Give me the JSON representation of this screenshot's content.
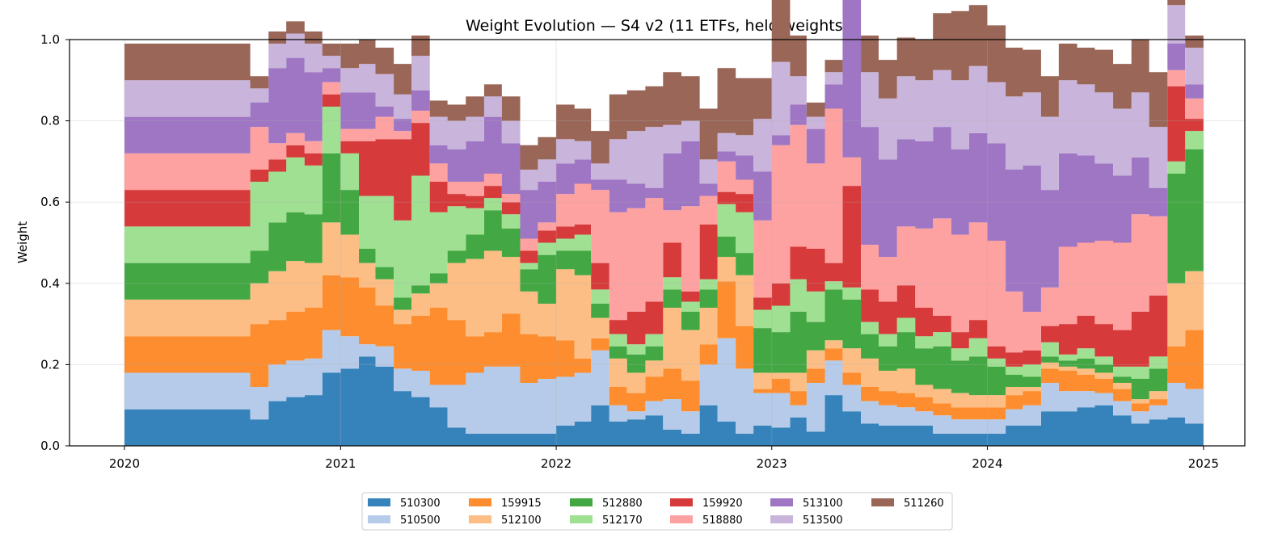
{
  "chart_data": {
    "type": "area",
    "subtype": "stacked-step",
    "title": "Weight Evolution — S4 v2 (11 ETFs, held weights)",
    "xlabel": "",
    "ylabel": "Weight",
    "ylim": [
      0,
      1
    ],
    "xlim": [
      "2019-09-30",
      "2025-03-12"
    ],
    "yticks": [
      "0.0",
      "0.2",
      "0.4",
      "0.6",
      "0.8",
      "1.0"
    ],
    "xticks": [
      "2020",
      "2021",
      "2022",
      "2023",
      "2024",
      "2025"
    ],
    "grid": true,
    "legend_position": "bottom-center",
    "x": [
      "2020-01-01",
      "2020-08-01",
      "2020-09-01",
      "2020-10-01",
      "2020-11-01",
      "2020-12-01",
      "2021-01-01",
      "2021-02-01",
      "2021-03-01",
      "2021-04-01",
      "2021-05-01",
      "2021-06-01",
      "2021-07-01",
      "2021-08-01",
      "2021-09-01",
      "2021-10-01",
      "2021-11-01",
      "2021-12-01",
      "2022-01-01",
      "2022-02-01",
      "2022-03-01",
      "2022-04-01",
      "2022-05-01",
      "2022-06-01",
      "2022-07-01",
      "2022-08-01",
      "2022-09-01",
      "2022-10-01",
      "2022-11-01",
      "2022-12-01",
      "2023-01-01",
      "2023-02-01",
      "2023-03-01",
      "2023-04-01",
      "2023-05-01",
      "2023-06-01",
      "2023-07-01",
      "2023-08-01",
      "2023-09-01",
      "2023-10-01",
      "2023-11-01",
      "2023-12-01",
      "2024-01-01",
      "2024-02-01",
      "2024-03-01",
      "2024-04-01",
      "2024-05-01",
      "2024-06-01",
      "2024-07-01",
      "2024-08-01",
      "2024-09-01",
      "2024-10-01",
      "2024-11-01",
      "2024-12-01"
    ],
    "x_end": "2025-01-01",
    "series": [
      {
        "name": "510300",
        "color": "#3683bb",
        "values": [
          0.09,
          0.065,
          0.11,
          0.12,
          0.125,
          0.18,
          0.19,
          0.22,
          0.195,
          0.135,
          0.12,
          0.095,
          0.045,
          0.03,
          0.03,
          0.03,
          0.03,
          0.03,
          0.05,
          0.06,
          0.1,
          0.06,
          0.065,
          0.075,
          0.04,
          0.03,
          0.1,
          0.06,
          0.03,
          0.05,
          0.045,
          0.07,
          0.035,
          0.125,
          0.085,
          0.055,
          0.05,
          0.05,
          0.05,
          0.03,
          0.03,
          0.03,
          0.03,
          0.05,
          0.05,
          0.085,
          0.085,
          0.095,
          0.1,
          0.075,
          0.055,
          0.065,
          0.07,
          0.055
        ]
      },
      {
        "name": "510500",
        "color": "#b6cbe9",
        "values": [
          0.09,
          0.08,
          0.09,
          0.09,
          0.09,
          0.105,
          0.08,
          0.03,
          0.05,
          0.055,
          0.065,
          0.055,
          0.105,
          0.15,
          0.165,
          0.165,
          0.125,
          0.135,
          0.12,
          0.12,
          0.135,
          0.04,
          0.02,
          0.035,
          0.075,
          0.055,
          0.1,
          0.205,
          0.16,
          0.08,
          0.085,
          0.03,
          0.12,
          0.085,
          0.065,
          0.055,
          0.05,
          0.045,
          0.035,
          0.045,
          0.035,
          0.035,
          0.035,
          0.04,
          0.05,
          0.07,
          0.05,
          0.04,
          0.03,
          0.035,
          0.03,
          0.035,
          0.085,
          0.085
        ]
      },
      {
        "name": "159915",
        "color": "#fd8d2e",
        "values": [
          0.09,
          0.155,
          0.11,
          0.12,
          0.125,
          0.135,
          0.145,
          0.14,
          0.1,
          0.11,
          0.135,
          0.19,
          0.16,
          0.09,
          0.085,
          0.13,
          0.12,
          0.105,
          0.09,
          0.035,
          0.03,
          0.045,
          0.045,
          0.06,
          0.075,
          0.075,
          0.05,
          0.14,
          0.105,
          0.01,
          0.035,
          0.035,
          0.035,
          0.03,
          0.03,
          0.035,
          0.035,
          0.035,
          0.035,
          0.03,
          0.03,
          0.03,
          0.03,
          0.035,
          0.035,
          0.035,
          0.05,
          0.04,
          0.035,
          0.03,
          0.02,
          0.015,
          0.09,
          0.145
        ]
      },
      {
        "name": "512100",
        "color": "#fdbe85",
        "values": [
          0.09,
          0.1,
          0.12,
          0.125,
          0.11,
          0.13,
          0.105,
          0.06,
          0.065,
          0.035,
          0.055,
          0.06,
          0.14,
          0.19,
          0.2,
          0.14,
          0.105,
          0.08,
          0.175,
          0.205,
          0.05,
          0.07,
          0.05,
          0.04,
          0.15,
          0.125,
          0.09,
          0.06,
          0.125,
          0.04,
          0.015,
          0.045,
          0.045,
          0.02,
          0.06,
          0.07,
          0.05,
          0.06,
          0.03,
          0.035,
          0.035,
          0.03,
          0.03,
          0.02,
          0.01,
          0.015,
          0.01,
          0.015,
          0.015,
          0.015,
          0.01,
          0.02,
          0.155,
          0.145
        ]
      },
      {
        "name": "512880",
        "color": "#43a843",
        "values": [
          0.09,
          0.08,
          0.12,
          0.12,
          0.12,
          0.17,
          0.11,
          0.035,
          0.03,
          0.03,
          0.02,
          0.025,
          0.03,
          0.06,
          0.1,
          0.07,
          0.055,
          0.12,
          0.045,
          0.06,
          0.035,
          0.03,
          0.045,
          0.035,
          0.045,
          0.045,
          0.045,
          0.05,
          0.055,
          0.11,
          0.1,
          0.15,
          0.07,
          0.125,
          0.12,
          0.06,
          0.06,
          0.09,
          0.09,
          0.105,
          0.08,
          0.095,
          0.07,
          0.03,
          0.025,
          0.015,
          0.015,
          0.025,
          0.02,
          0.015,
          0.05,
          0.055,
          0.27,
          0.3
        ]
      },
      {
        "name": "512170",
        "color": "#a0e092",
        "values": [
          0.09,
          0.17,
          0.125,
          0.135,
          0.12,
          0.115,
          0.09,
          0.13,
          0.175,
          0.19,
          0.27,
          0.15,
          0.11,
          0.065,
          0.03,
          0.035,
          0.015,
          0.03,
          0.03,
          0.04,
          0.035,
          0.03,
          0.025,
          0.03,
          0.03,
          0.025,
          0.025,
          0.08,
          0.1,
          0.045,
          0.065,
          0.08,
          0.075,
          0.02,
          0.03,
          0.03,
          0.03,
          0.035,
          0.03,
          0.035,
          0.03,
          0.045,
          0.02,
          0.02,
          0.03,
          0.035,
          0.015,
          0.025,
          0.02,
          0.025,
          0.03,
          0.03,
          0.03,
          0.045
        ]
      },
      {
        "name": "159920",
        "color": "#d63a3a",
        "values": [
          0.09,
          0.03,
          0.03,
          0.03,
          0.03,
          0.03,
          0.03,
          0.135,
          0.14,
          0.2,
          0.13,
          0.075,
          0.03,
          0.03,
          0.03,
          0.03,
          0.03,
          0.03,
          0.03,
          0.025,
          0.065,
          0.035,
          0.08,
          0.08,
          0.085,
          0.025,
          0.135,
          0.03,
          0.045,
          0.03,
          0.055,
          0.08,
          0.105,
          0.045,
          0.25,
          0.08,
          0.08,
          0.08,
          0.07,
          0.04,
          0.04,
          0.045,
          0.03,
          0.035,
          0.035,
          0.04,
          0.075,
          0.08,
          0.08,
          0.09,
          0.135,
          0.15,
          0.185,
          0.03
        ]
      },
      {
        "name": "518880",
        "color": "#fea1a1",
        "values": [
          0.09,
          0.105,
          0.04,
          0.03,
          0.03,
          0.03,
          0.03,
          0.03,
          0.055,
          0.02,
          0.03,
          0.045,
          0.03,
          0.035,
          0.03,
          0.02,
          0.03,
          0.02,
          0.08,
          0.1,
          0.18,
          0.265,
          0.255,
          0.255,
          0.08,
          0.21,
          0.07,
          0.075,
          0.035,
          0.19,
          0.34,
          0.3,
          0.21,
          0.38,
          0.07,
          0.11,
          0.11,
          0.145,
          0.195,
          0.24,
          0.24,
          0.24,
          0.26,
          0.15,
          0.095,
          0.095,
          0.19,
          0.18,
          0.205,
          0.215,
          0.24,
          0.195,
          0.04,
          0.05
        ]
      },
      {
        "name": "513100",
        "color": "#9e76c3",
        "values": [
          0.09,
          0.06,
          0.185,
          0.185,
          0.17,
          0.035,
          0.09,
          0.09,
          0.025,
          0.03,
          0.05,
          0.045,
          0.08,
          0.1,
          0.14,
          0.125,
          0.12,
          0.1,
          0.075,
          0.06,
          0.025,
          0.08,
          0.06,
          0.025,
          0.14,
          0.16,
          0.03,
          0.025,
          0.06,
          0.12,
          0.025,
          0.05,
          0.085,
          0.06,
          0.39,
          0.29,
          0.24,
          0.215,
          0.215,
          0.225,
          0.21,
          0.22,
          0.24,
          0.3,
          0.36,
          0.24,
          0.23,
          0.215,
          0.19,
          0.165,
          0.14,
          0.07,
          0.065,
          0.035
        ]
      },
      {
        "name": "513500",
        "color": "#c9b4db",
        "values": [
          0.09,
          0.035,
          0.06,
          0.06,
          0.07,
          0.03,
          0.06,
          0.07,
          0.08,
          0.06,
          0.085,
          0.07,
          0.07,
          0.06,
          0.05,
          0.055,
          0.05,
          0.055,
          0.06,
          0.045,
          0.04,
          0.1,
          0.13,
          0.15,
          0.07,
          0.05,
          0.06,
          0.045,
          0.05,
          0.13,
          0.18,
          0.07,
          0.03,
          0.03,
          0.09,
          0.135,
          0.15,
          0.155,
          0.15,
          0.14,
          0.17,
          0.165,
          0.15,
          0.18,
          0.18,
          0.18,
          0.18,
          0.175,
          0.175,
          0.165,
          0.16,
          0.15,
          0.095,
          0.09
        ]
      },
      {
        "name": "511260",
        "color": "#996657",
        "values": [
          0.09,
          0.03,
          0.03,
          0.03,
          0.03,
          0.03,
          0.06,
          0.06,
          0.065,
          0.075,
          0.05,
          0.04,
          0.04,
          0.05,
          0.03,
          0.06,
          0.06,
          0.055,
          0.085,
          0.08,
          0.08,
          0.11,
          0.1,
          0.1,
          0.13,
          0.11,
          0.125,
          0.16,
          0.14,
          0.1,
          0.18,
          0.1,
          0.035,
          0.03,
          0.065,
          0.09,
          0.095,
          0.095,
          0.1,
          0.14,
          0.17,
          0.15,
          0.14,
          0.12,
          0.105,
          0.1,
          0.09,
          0.09,
          0.105,
          0.11,
          0.13,
          0.135,
          0.03,
          0.03
        ]
      }
    ]
  }
}
